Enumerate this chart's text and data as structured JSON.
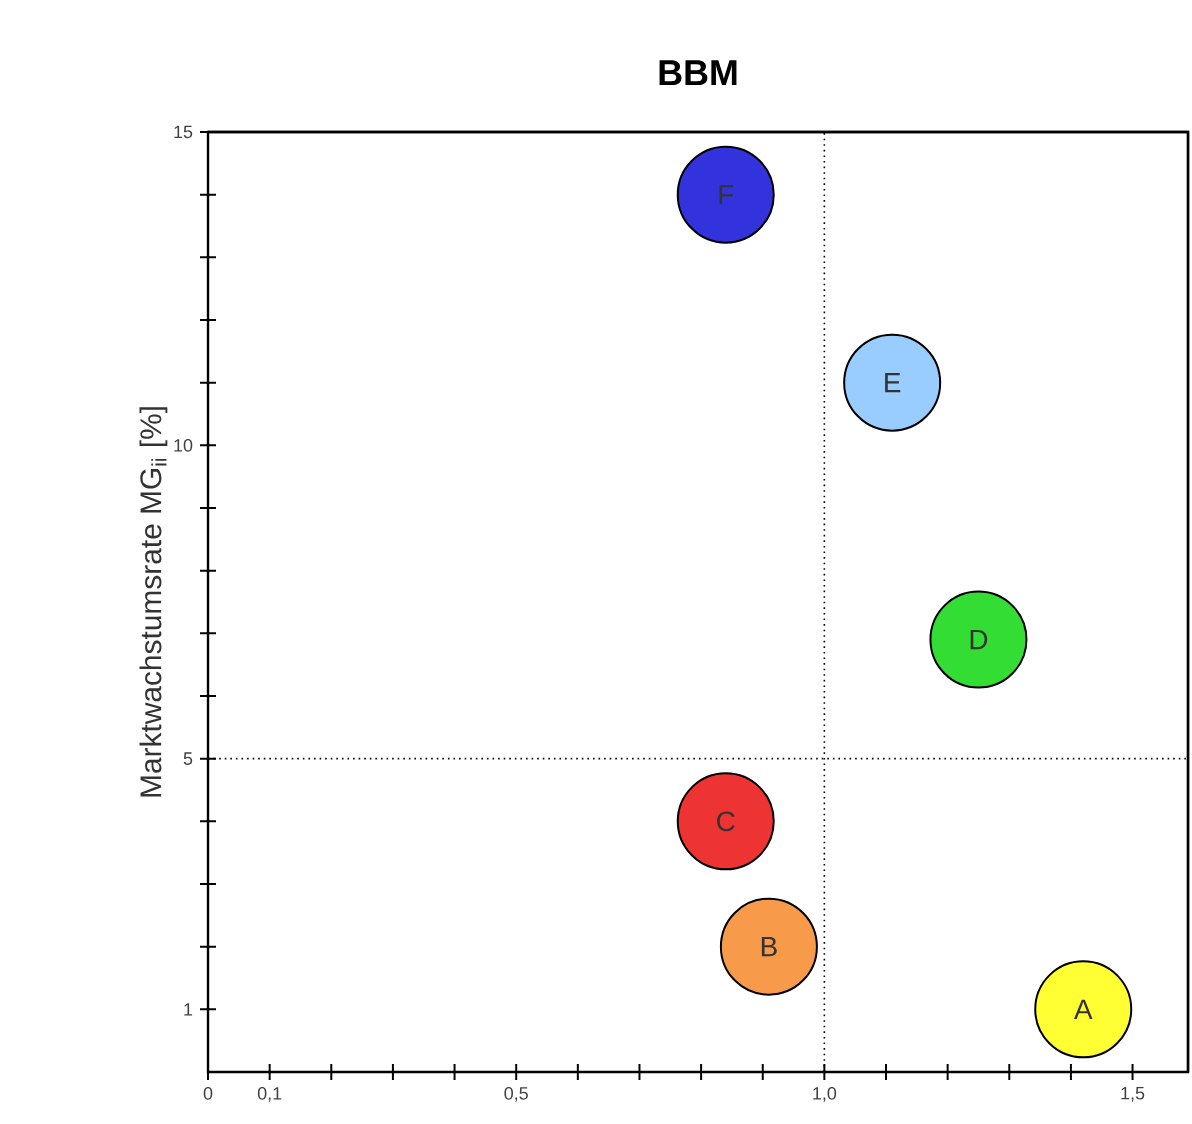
{
  "chart_data": {
    "type": "scatter",
    "title": "BBM",
    "ylabel": "Marktwachstumsrate MG$_{ii}$ [%]",
    "x": [
      1.42,
      0.91,
      0.84,
      1.25,
      1.11,
      0.84
    ],
    "values": [
      1,
      2,
      4,
      6.9,
      11,
      14
    ],
    "colors": [
      "#ffff33",
      "#f79a4a",
      "#ee3333",
      "#33dd33",
      "#99ccff",
      "#3333dd"
    ],
    "marker": "circle",
    "annotations": [
      {
        "text": "A",
        "x": 1.42,
        "y": 1
      },
      {
        "text": "B",
        "x": 0.91,
        "y": 2
      },
      {
        "text": "C",
        "x": 0.84,
        "y": 4
      },
      {
        "text": "D",
        "x": 1.25,
        "y": 6.9
      },
      {
        "text": "E",
        "x": 1.11,
        "y": 11
      },
      {
        "text": "F",
        "x": 0.84,
        "y": 14
      }
    ],
    "ref_lines": [
      {
        "axis": "x",
        "value": 1.0,
        "line_style": "dotted"
      },
      {
        "axis": "y",
        "value": 5,
        "line_style": "dotted"
      }
    ],
    "xlim": [
      0,
      1.59
    ],
    "ylim": [
      0,
      15
    ],
    "xticks": [
      {
        "value": 0,
        "label": "0"
      },
      {
        "value": 0.1,
        "label": "0,1"
      },
      {
        "value": 0.2,
        "label": null
      },
      {
        "value": 0.3,
        "label": null
      },
      {
        "value": 0.4,
        "label": null
      },
      {
        "value": 0.5,
        "label": "0,5"
      },
      {
        "value": 0.6,
        "label": null
      },
      {
        "value": 0.7,
        "label": null
      },
      {
        "value": 0.8,
        "label": null
      },
      {
        "value": 0.9,
        "label": null
      },
      {
        "value": 1.0,
        "label": "1,0"
      },
      {
        "value": 1.1,
        "label": null
      },
      {
        "value": 1.2,
        "label": null
      },
      {
        "value": 1.3,
        "label": null
      },
      {
        "value": 1.4,
        "label": null
      },
      {
        "value": 1.5,
        "label": "1,5"
      }
    ],
    "yticks": [
      1,
      {
        "value": 2,
        "label": null
      },
      {
        "value": 3,
        "label": null
      },
      {
        "value": 4,
        "label": null
      },
      5,
      {
        "value": 6,
        "label": null
      },
      {
        "value": 7,
        "label": null
      },
      {
        "value": 8,
        "label": null
      },
      {
        "value": 9,
        "label": null
      },
      10,
      {
        "value": 11,
        "label": null
      },
      {
        "value": 12,
        "label": null
      },
      {
        "value": 13,
        "label": null
      },
      {
        "value": 14,
        "label": null
      },
      15
    ]
  }
}
